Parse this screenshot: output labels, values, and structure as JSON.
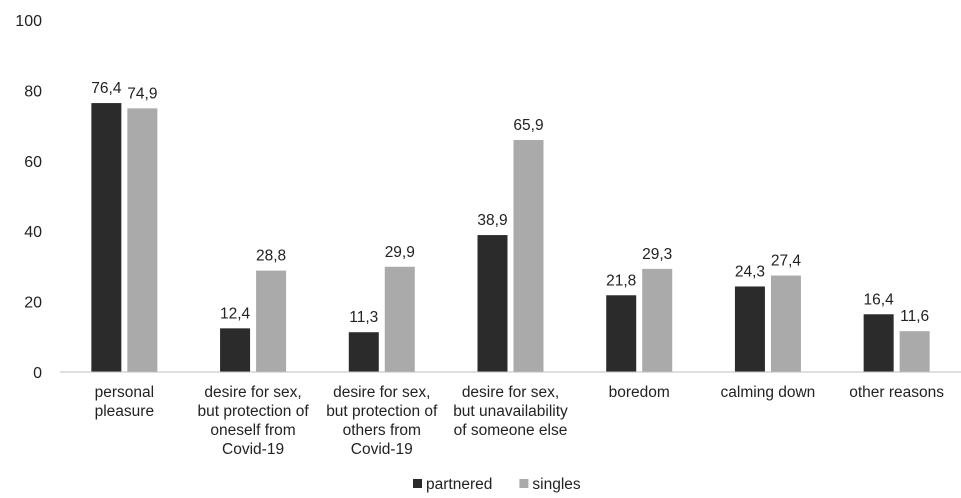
{
  "chart_data": {
    "type": "bar",
    "title": "",
    "xlabel": "",
    "ylabel": "",
    "ylim": [
      0,
      100
    ],
    "yticks": [
      0,
      20,
      40,
      60,
      80,
      100
    ],
    "grid": false,
    "legend_position": "bottom",
    "categories": [
      "personal pleasure",
      "desire for sex, but protection of oneself from Covid-19",
      "desire for sex, but protection of others from Covid-19",
      "desire for sex, but unavailability of someone else",
      "boredom",
      "calming down",
      "other reasons"
    ],
    "category_lines": [
      [
        "personal",
        "pleasure"
      ],
      [
        "desire for sex,",
        "but protection of",
        "oneself from",
        "Covid-19"
      ],
      [
        "desire for sex,",
        "but protection of",
        "others from",
        "Covid-19"
      ],
      [
        "desire for sex,",
        "but unavailability",
        "of someone else"
      ],
      [
        "boredom"
      ],
      [
        "calming down"
      ],
      [
        "other reasons"
      ]
    ],
    "series": [
      {
        "name": "partnered",
        "color": "#2b2b2b",
        "values": [
          76.4,
          12.4,
          11.3,
          38.9,
          21.8,
          24.3,
          16.4
        ],
        "labels": [
          "76,4",
          "12,4",
          "11,3",
          "38,9",
          "21,8",
          "24,3",
          "16,4"
        ]
      },
      {
        "name": "singles",
        "color": "#aaaaaa",
        "values": [
          74.9,
          28.8,
          29.9,
          65.9,
          29.3,
          27.4,
          11.6
        ],
        "labels": [
          "74,9",
          "28,8",
          "29,9",
          "65,9",
          "29,3",
          "27,4",
          "11,6"
        ]
      }
    ]
  }
}
